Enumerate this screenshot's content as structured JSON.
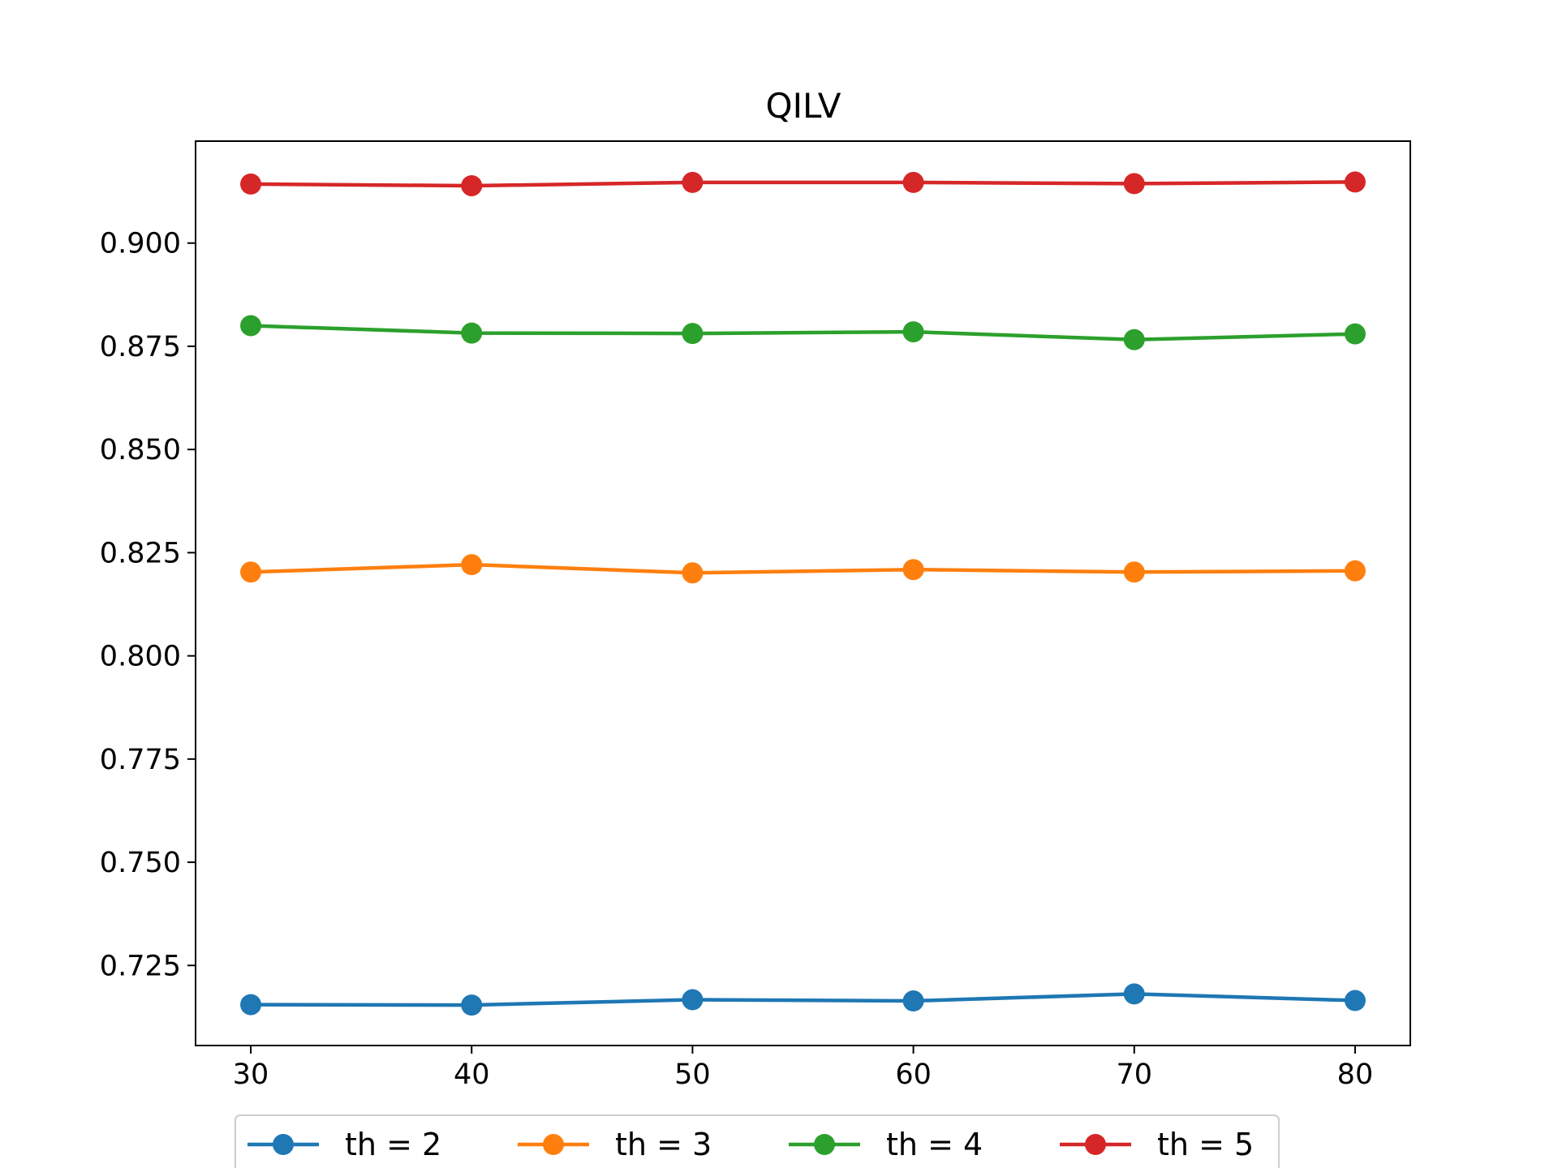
{
  "chart_data": {
    "type": "line",
    "title": "QILV",
    "xlabel": "",
    "ylabel": "",
    "x": [
      30,
      40,
      50,
      60,
      70,
      80
    ],
    "xticks": [
      30,
      40,
      50,
      60,
      70,
      80
    ],
    "xtick_labels": [
      "30",
      "40",
      "50",
      "60",
      "70",
      "80"
    ],
    "yticks": [
      0.725,
      0.75,
      0.775,
      0.8,
      0.825,
      0.85,
      0.875,
      0.9
    ],
    "ytick_labels": [
      "0.725",
      "0.750",
      "0.775",
      "0.800",
      "0.825",
      "0.850",
      "0.875",
      "0.900"
    ],
    "xlim": [
      27.5,
      82.5
    ],
    "ylim": [
      0.7056,
      0.9247
    ],
    "grid": false,
    "legend_position": "bottom-center",
    "series": [
      {
        "name": "th = 2",
        "color": "#1f77b4",
        "marker": "circle",
        "values": [
          0.7155,
          0.7154,
          0.7167,
          0.7164,
          0.7181,
          0.7165
        ]
      },
      {
        "name": "th = 3",
        "color": "#ff7f0e",
        "marker": "circle",
        "values": [
          0.8203,
          0.8221,
          0.8201,
          0.8209,
          0.8203,
          0.8206
        ]
      },
      {
        "name": "th = 4",
        "color": "#2ca02c",
        "marker": "circle",
        "values": [
          0.88,
          0.8782,
          0.8781,
          0.8785,
          0.8766,
          0.878
        ]
      },
      {
        "name": "th = 5",
        "color": "#d62728",
        "marker": "circle",
        "values": [
          0.9143,
          0.9139,
          0.9147,
          0.9147,
          0.9144,
          0.9148
        ]
      }
    ]
  }
}
